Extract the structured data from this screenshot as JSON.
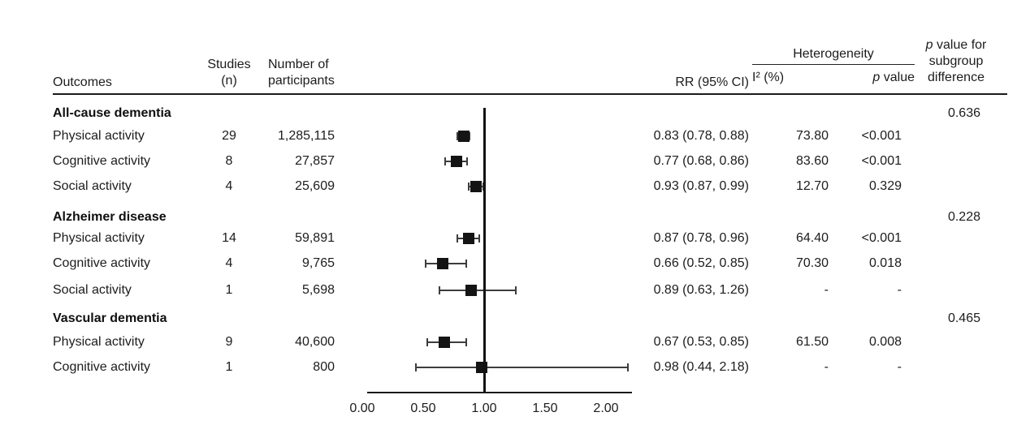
{
  "header": {
    "outcomes": "Outcomes",
    "studies_line1": "Studies",
    "studies_line2": "(n)",
    "participants_line1": "Number of",
    "participants_line2": "participants",
    "rr": "RR (95% CI)",
    "heterogeneity": "Heterogeneity",
    "i2": "I² (%)",
    "het_p_italic": "p",
    "het_p_rest": " value",
    "subgroup_line1_italic": "p",
    "subgroup_line1_rest": " value for",
    "subgroup_line2": "subgroup",
    "subgroup_line3": "difference"
  },
  "colors": {
    "text": "#1c1c1c",
    "line": "#1a1a1a",
    "marker": "#141414",
    "background": "#ffffff"
  },
  "chart_data": {
    "type": "forest",
    "title": "",
    "xlabel": "",
    "ref_line": 1.0,
    "xlim": [
      0.0,
      2.2
    ],
    "x_ticks": [
      0.0,
      0.5,
      1.0,
      1.5,
      2.0
    ],
    "x_tick_labels": [
      "0.00",
      "0.50",
      "1.00",
      "1.50",
      "2.00"
    ],
    "grid": false,
    "sections": [
      {
        "name": "All-cause dementia",
        "subgroup_p": "0.636",
        "rows": [
          {
            "outcome": "Physical activity",
            "studies": "29",
            "participants": "1,285,115",
            "rr_text": "0.83 (0.78, 0.88)",
            "rr": 0.83,
            "ci_low": 0.78,
            "ci_high": 0.88,
            "i2": "73.80",
            "p_value": "<0.001"
          },
          {
            "outcome": "Cognitive activity",
            "studies": "8",
            "participants": "27,857",
            "rr_text": "0.77 (0.68, 0.86)",
            "rr": 0.77,
            "ci_low": 0.68,
            "ci_high": 0.86,
            "i2": "83.60",
            "p_value": "<0.001"
          },
          {
            "outcome": "Social activity",
            "studies": "4",
            "participants": "25,609",
            "rr_text": "0.93 (0.87, 0.99)",
            "rr": 0.93,
            "ci_low": 0.87,
            "ci_high": 0.99,
            "i2": "12.70",
            "p_value": "0.329"
          }
        ]
      },
      {
        "name": "Alzheimer disease",
        "subgroup_p": "0.228",
        "rows": [
          {
            "outcome": "Physical activity",
            "studies": "14",
            "participants": "59,891",
            "rr_text": "0.87 (0.78, 0.96)",
            "rr": 0.87,
            "ci_low": 0.78,
            "ci_high": 0.96,
            "i2": "64.40",
            "p_value": "<0.001"
          },
          {
            "outcome": "Cognitive activity",
            "studies": "4",
            "participants": "9,765",
            "rr_text": "0.66 (0.52, 0.85)",
            "rr": 0.66,
            "ci_low": 0.52,
            "ci_high": 0.85,
            "i2": "70.30",
            "p_value": "0.018"
          },
          {
            "outcome": "Social activity",
            "studies": "1",
            "participants": "5,698",
            "rr_text": "0.89 (0.63, 1.26)",
            "rr": 0.89,
            "ci_low": 0.63,
            "ci_high": 1.26,
            "i2": "-",
            "p_value": "-"
          }
        ]
      },
      {
        "name": "Vascular dementia",
        "subgroup_p": "0.465",
        "rows": [
          {
            "outcome": "Physical activity",
            "studies": "9",
            "participants": "40,600",
            "rr_text": "0.67 (0.53, 0.85)",
            "rr": 0.67,
            "ci_low": 0.53,
            "ci_high": 0.85,
            "i2": "61.50",
            "p_value": "0.008"
          },
          {
            "outcome": "Cognitive activity",
            "studies": "1",
            "participants": "800",
            "rr_text": "0.98 (0.44, 2.18)",
            "rr": 0.98,
            "ci_low": 0.44,
            "ci_high": 2.18,
            "i2": "-",
            "p_value": "-"
          }
        ]
      }
    ]
  }
}
